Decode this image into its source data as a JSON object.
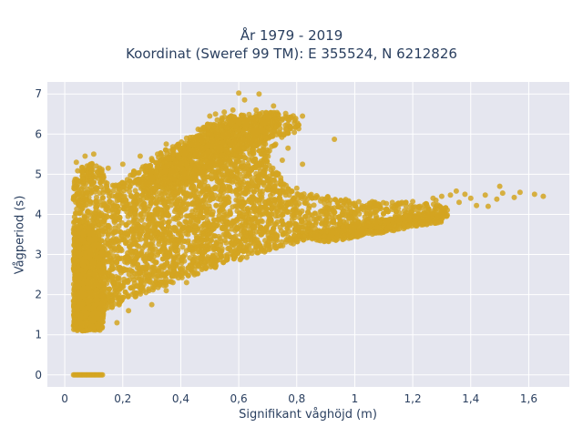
{
  "chart_data": {
    "type": "scatter",
    "title_line1": "År 1979 - 2019",
    "title_line2": "Koordinat (Sweref 99 TM): E 355524, N 6212826",
    "xlabel": "Signifikant våghöjd (m)",
    "ylabel": "Vågperiod (s)",
    "xlim": [
      -0.06,
      1.74
    ],
    "ylim": [
      -0.3,
      7.3
    ],
    "x_ticks": [
      0,
      0.2,
      0.4,
      0.6,
      0.8,
      1,
      1.2,
      1.4,
      1.6
    ],
    "x_tick_labels": [
      "0",
      "0,2",
      "0,4",
      "0,6",
      "0,8",
      "1",
      "1,2",
      "1,4",
      "1,6"
    ],
    "y_ticks": [
      0,
      1,
      2,
      3,
      4,
      5,
      6,
      7
    ],
    "y_tick_labels": [
      "0",
      "1",
      "2",
      "3",
      "4",
      "5",
      "6",
      "7"
    ],
    "grid": true,
    "marker_color": "#d4a421",
    "plot_background": "#e5e6ef",
    "regions": [
      {
        "polygon": [
          [
            0.03,
            1.1
          ],
          [
            0.03,
            4.9
          ],
          [
            0.05,
            5.2
          ],
          [
            0.12,
            5.3
          ],
          [
            0.15,
            4.7
          ],
          [
            0.2,
            4.8
          ],
          [
            0.24,
            5.1
          ],
          [
            0.3,
            5.4
          ],
          [
            0.38,
            5.75
          ],
          [
            0.45,
            6.05
          ],
          [
            0.5,
            6.3
          ],
          [
            0.56,
            6.45
          ],
          [
            0.65,
            6.52
          ],
          [
            0.72,
            6.55
          ],
          [
            0.8,
            6.5
          ],
          [
            0.81,
            6.1
          ],
          [
            0.74,
            5.85
          ],
          [
            0.7,
            5.5
          ],
          [
            0.72,
            5.2
          ],
          [
            0.75,
            4.85
          ],
          [
            0.8,
            4.55
          ],
          [
            0.9,
            4.45
          ],
          [
            1.05,
            4.32
          ],
          [
            1.2,
            4.3
          ],
          [
            1.28,
            4.25
          ],
          [
            1.32,
            4.15
          ],
          [
            1.32,
            3.95
          ],
          [
            1.2,
            3.82
          ],
          [
            1.05,
            3.62
          ],
          [
            0.9,
            3.42
          ],
          [
            0.75,
            3.2
          ],
          [
            0.6,
            2.85
          ],
          [
            0.45,
            2.5
          ],
          [
            0.3,
            2.1
          ],
          [
            0.2,
            1.8
          ],
          [
            0.14,
            1.5
          ],
          [
            0.11,
            1.1
          ]
        ],
        "count": 4200
      },
      {
        "polygon": [
          [
            0.25,
            4.8
          ],
          [
            0.35,
            5.4
          ],
          [
            0.48,
            6.0
          ],
          [
            0.6,
            6.4
          ],
          [
            0.74,
            6.5
          ],
          [
            0.72,
            5.9
          ],
          [
            0.62,
            5.6
          ],
          [
            0.5,
            5.1
          ],
          [
            0.4,
            4.7
          ],
          [
            0.3,
            4.5
          ]
        ],
        "count": 900
      },
      {
        "polygon": [
          [
            0.03,
            1.1
          ],
          [
            0.03,
            3.7
          ],
          [
            0.1,
            3.7
          ],
          [
            0.13,
            3.1
          ],
          [
            0.14,
            2.3
          ],
          [
            0.13,
            1.1
          ]
        ],
        "count": 1200
      },
      {
        "polygon": [
          [
            0.8,
            3.45
          ],
          [
            1.0,
            3.75
          ],
          [
            1.2,
            4.0
          ],
          [
            1.32,
            4.12
          ],
          [
            1.3,
            3.8
          ],
          [
            1.1,
            3.55
          ],
          [
            0.9,
            3.3
          ]
        ],
        "count": 500
      }
    ],
    "points": [
      [
        0.67,
        7.0
      ],
      [
        0.6,
        7.02
      ],
      [
        0.62,
        6.85
      ],
      [
        0.72,
        6.7
      ],
      [
        0.82,
        6.45
      ],
      [
        0.93,
        5.87
      ],
      [
        1.5,
        4.7
      ],
      [
        1.62,
        4.5
      ],
      [
        1.65,
        4.45
      ],
      [
        1.57,
        4.55
      ],
      [
        1.55,
        4.42
      ],
      [
        1.45,
        4.48
      ],
      [
        1.49,
        4.38
      ],
      [
        1.42,
        4.22
      ],
      [
        1.38,
        4.5
      ],
      [
        1.35,
        4.58
      ],
      [
        1.51,
        4.53
      ],
      [
        1.46,
        4.2
      ],
      [
        1.4,
        4.4
      ],
      [
        1.36,
        4.3
      ],
      [
        1.33,
        4.48
      ],
      [
        1.28,
        4.35
      ],
      [
        1.3,
        4.45
      ],
      [
        0.55,
        6.55
      ],
      [
        0.5,
        6.45
      ],
      [
        0.66,
        6.6
      ],
      [
        0.7,
        6.3
      ],
      [
        0.77,
        5.65
      ],
      [
        0.75,
        5.35
      ],
      [
        0.8,
        4.05
      ],
      [
        0.73,
        4.15
      ],
      [
        0.78,
        4.25
      ],
      [
        0.63,
        4.65
      ],
      [
        0.68,
        4.5
      ],
      [
        0.82,
        5.25
      ],
      [
        0.8,
        4.65
      ],
      [
        0.07,
        5.45
      ],
      [
        0.1,
        5.5
      ],
      [
        0.09,
        5.2
      ],
      [
        0.04,
        5.3
      ],
      [
        0.04,
        1.2
      ],
      [
        0.06,
        1.1
      ],
      [
        0.22,
        1.6
      ],
      [
        0.3,
        1.75
      ],
      [
        0.18,
        1.3
      ],
      [
        0.28,
        2.05
      ],
      [
        0.35,
        2.1
      ],
      [
        0.42,
        2.3
      ],
      [
        0.2,
        5.25
      ],
      [
        0.26,
        5.45
      ],
      [
        0.15,
        5.15
      ],
      [
        0.32,
        5.5
      ],
      [
        0.42,
        5.9
      ],
      [
        0.35,
        5.75
      ],
      [
        0.46,
        6.12
      ],
      [
        0.52,
        6.5
      ],
      [
        0.58,
        6.6
      ],
      [
        1.25,
        4.2
      ],
      [
        1.2,
        4.32
      ],
      [
        1.15,
        4.15
      ],
      [
        1.0,
        4.0
      ],
      [
        1.05,
        4.12
      ],
      [
        1.27,
        4.4
      ]
    ],
    "zero_period_points": {
      "x_from": 0.03,
      "x_to": 0.13,
      "step": 0.004,
      "y": 0
    }
  }
}
